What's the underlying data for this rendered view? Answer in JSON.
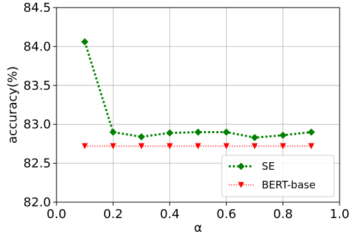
{
  "chart_data": {
    "type": "line",
    "title": "",
    "xlabel": "α",
    "ylabel": "accuracy(%)",
    "xlim": [
      0.0,
      1.0
    ],
    "ylim": [
      82.0,
      84.5
    ],
    "xticks": [
      "0.0",
      "0.2",
      "0.4",
      "0.6",
      "0.8",
      "1.0"
    ],
    "yticks": [
      "82.0",
      "82.5",
      "83.0",
      "83.5",
      "84.0",
      "84.5"
    ],
    "grid": true,
    "legend_position": "bottom-right",
    "x": [
      0.1,
      0.2,
      0.3,
      0.4,
      0.5,
      0.6,
      0.7,
      0.8,
      0.9
    ],
    "series": [
      {
        "name": "SE",
        "color": "#008000",
        "marker": "diamond",
        "line_style": "dotted",
        "values": [
          84.06,
          82.9,
          82.84,
          82.89,
          82.9,
          82.9,
          82.83,
          82.86,
          82.9
        ]
      },
      {
        "name": "BERT-base",
        "color": "#ff0000",
        "marker": "triangle-down",
        "line_style": "dotted",
        "values": [
          82.72,
          82.72,
          82.72,
          82.72,
          82.72,
          82.72,
          82.72,
          82.72,
          82.72
        ]
      }
    ]
  }
}
